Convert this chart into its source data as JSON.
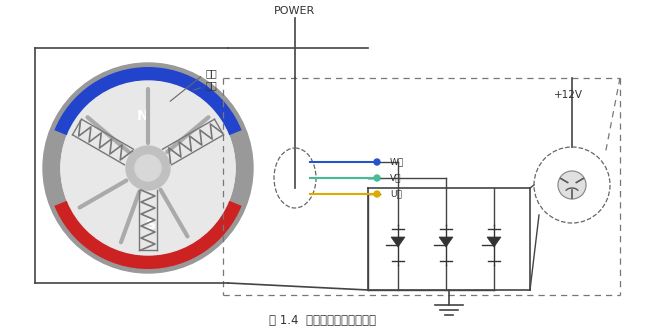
{
  "title": "图 1.4  无刷直流电机转动原理",
  "bg_color": "#ffffff",
  "magnet_N_color": "#cc2222",
  "magnet_S_color": "#2244cc",
  "wire_colors": [
    "#2255cc",
    "#44bb99",
    "#ddaa00"
  ],
  "wire_labels": [
    "W相",
    "V相",
    "U相"
  ],
  "label_rotor": "转子",
  "label_stator": "定子",
  "power_label": "POWER",
  "voltage_label": "+12V",
  "fig_width": 6.47,
  "fig_height": 3.32
}
